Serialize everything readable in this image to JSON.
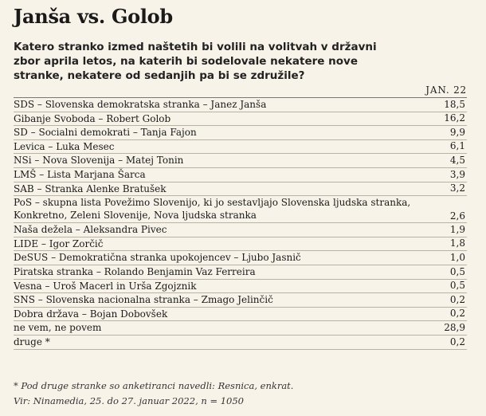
{
  "header": {
    "title": "Janša vs. Golob",
    "question": "Katero stranko izmed naštetih bi volili na volitvah v državni zbor aprila letos, na katerih bi sodelovale nekatere nove stranke, nekatere od sedanjih pa bi se združile?"
  },
  "table": {
    "column_header": "JAN. 22"
  },
  "chart_data": {
    "type": "table",
    "column": "JAN. 22",
    "rows": [
      {
        "label": "SDS – Slovenska demokratska stranka – Janez Janša",
        "value": "18,5"
      },
      {
        "label": "Gibanje Svoboda – Robert Golob",
        "value": "16,2"
      },
      {
        "label": "SD – Socialni demokrati – Tanja Fajon",
        "value": "9,9"
      },
      {
        "label": "Levica – Luka Mesec",
        "value": "6,1"
      },
      {
        "label": "NSi – Nova Slovenija – Matej Tonin",
        "value": "4,5"
      },
      {
        "label": "LMŠ – Lista Marjana Šarca",
        "value": "3,9"
      },
      {
        "label": "SAB – Stranka Alenke Bratušek",
        "value": "3,2"
      },
      {
        "label": "PoS – skupna lista Povežimo Slovenijo, ki jo sestavljajo Slovenska ljudska stranka, Konkretno, Zeleni Slovenije, Nova ljudska stranka",
        "value": "2,6",
        "tall": true
      },
      {
        "label": "Naša dežela – Aleksandra Pivec",
        "value": "1,9"
      },
      {
        "label": "LIDE – Igor Zorčič",
        "value": "1,8"
      },
      {
        "label": "DeSUS – Demokratična stranka upokojencev – Ljubo Jasnič",
        "value": "1,0"
      },
      {
        "label": "Piratska stranka – Rolando Benjamin Vaz Ferreira",
        "value": "0,5"
      },
      {
        "label": "Vesna – Uroš Macerl in Urša Zgojznik",
        "value": "0,5"
      },
      {
        "label": "SNS – Slovenska nacionalna stranka – Zmago Jelinčič",
        "value": "0,2"
      },
      {
        "label": "Dobra država – Bojan Dobovšek",
        "value": "0,2"
      },
      {
        "label": "ne vem, ne povem",
        "value": "28,9"
      },
      {
        "label": "druge *",
        "value": "0,2"
      }
    ]
  },
  "footer": {
    "note": "* Pod druge stranke so anketiranci navedli: Resnica, enkrat.",
    "source": "Vir: Ninamedia, 25. do 27. januar 2022, n = 1050"
  },
  "colors": {
    "background": "#f8f3e8",
    "text": "#1a1a1a",
    "rule": "#b9b3a6"
  }
}
